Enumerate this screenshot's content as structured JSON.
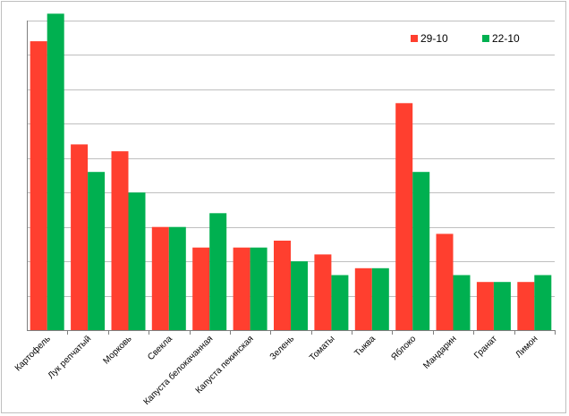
{
  "chart_data": {
    "type": "bar",
    "categories": [
      "Картофель",
      "Лук репчатый",
      "Морковь",
      "Свекла",
      "Капуста белокачанная",
      "Капуста пекинская",
      "Зелень",
      "Томаты",
      "Тыква",
      "Яблоко",
      "Мандарин",
      "Гранат",
      "Лимон"
    ],
    "series": [
      {
        "name": "29-10",
        "color": "#ff3f2f",
        "values": [
          8.4,
          5.4,
          5.2,
          3.0,
          2.4,
          2.4,
          2.6,
          2.2,
          1.8,
          6.6,
          2.8,
          1.4,
          1.4
        ]
      },
      {
        "name": "22-10",
        "color": "#00b050",
        "values": [
          9.2,
          4.6,
          4.0,
          3.0,
          3.4,
          2.4,
          2.0,
          1.6,
          1.8,
          4.6,
          1.6,
          1.4,
          1.6
        ]
      }
    ],
    "ylim": [
      0,
      9
    ],
    "y_tick_count": 9,
    "grid": true,
    "legend_position": "top-right",
    "xlabel": "",
    "ylabel": ""
  }
}
